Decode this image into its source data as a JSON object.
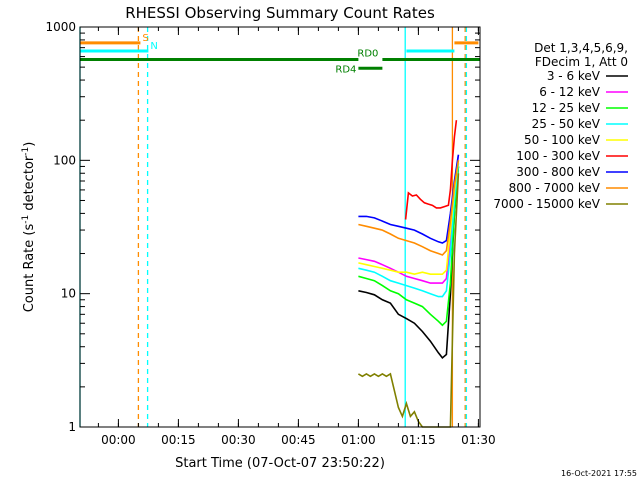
{
  "chart_data": {
    "type": "line",
    "title": "RHESSI Observing Summary Count Rates",
    "xlabel": "Start Time (07-Oct-07 23:50:22)",
    "ylabel": "Count Rate (s",
    "ylabel_sup1": "-1",
    "ylabel_mid": " detector",
    "ylabel_sup2": "-1",
    "ylabel_end": ")",
    "yscale": "log",
    "ylim": [
      1,
      1000
    ],
    "xlim_minutes": [
      -9.6,
      90.4
    ],
    "x_ticks": [
      {
        "label": "00:00",
        "min": 0
      },
      {
        "label": "00:15",
        "min": 15
      },
      {
        "label": "00:30",
        "min": 30
      },
      {
        "label": "00:45",
        "min": 45
      },
      {
        "label": "01:00",
        "min": 60
      },
      {
        "label": "01:15",
        "min": 75
      },
      {
        "label": "01:30",
        "min": 90
      }
    ],
    "y_ticks": [
      {
        "label": "1",
        "val": 1
      },
      {
        "label": "10",
        "val": 10
      },
      {
        "label": "100",
        "val": 100
      },
      {
        "label": "1000",
        "val": 1000
      }
    ],
    "legend_header": [
      "Det 1,3,4,5,6,9,",
      "FDecim 1, Att 0"
    ],
    "series": [
      {
        "name": "3 - 6 keV",
        "color": "#000000",
        "x": [
          60.0,
          62.0,
          64.0,
          66.0,
          68.0,
          70.0,
          72.0,
          74.0,
          76.0,
          78.0,
          80.0,
          81.0,
          82.0,
          83.0,
          84.0,
          85.0
        ],
        "y": [
          10.5,
          10.2,
          9.8,
          9.0,
          8.5,
          7.0,
          6.5,
          6.0,
          5.2,
          4.4,
          3.6,
          3.3,
          3.5,
          10.0,
          40.0,
          90.0
        ]
      },
      {
        "name": "6 - 12 keV",
        "color": "#ff00ff",
        "x": [
          60.0,
          62.0,
          64.0,
          66.0,
          68.0,
          70.0,
          72.0,
          74.0,
          76.0,
          78.0,
          80.0,
          81.0,
          82.0,
          83.0,
          84.0,
          85.0
        ],
        "y": [
          18.5,
          18.0,
          17.5,
          16.5,
          15.5,
          14.5,
          13.5,
          13.0,
          12.5,
          12.0,
          12.0,
          12.0,
          13.0,
          25.0,
          60.0,
          110.0
        ]
      },
      {
        "name": "12 - 25 keV",
        "color": "#00ff00",
        "x": [
          60.0,
          62.0,
          64.0,
          66.0,
          68.0,
          70.0,
          72.0,
          74.0,
          76.0,
          78.0,
          80.0,
          81.0,
          82.0,
          83.0,
          84.0,
          85.0
        ],
        "y": [
          13.5,
          13.0,
          12.5,
          11.5,
          10.5,
          10.0,
          9.0,
          8.5,
          8.0,
          7.0,
          6.2,
          5.8,
          6.2,
          12.0,
          40.0,
          90.0
        ]
      },
      {
        "name": "25 - 50 keV",
        "color": "#00ffff",
        "x": [
          60.0,
          62.0,
          64.0,
          66.0,
          68.0,
          70.0,
          72.0,
          74.0,
          76.0,
          78.0,
          80.0,
          81.0,
          82.0,
          83.0,
          84.0,
          85.0
        ],
        "y": [
          15.5,
          15.0,
          14.5,
          13.5,
          12.5,
          12.0,
          11.5,
          11.0,
          10.5,
          10.0,
          9.5,
          9.5,
          10.5,
          20.0,
          50.0,
          95.0
        ]
      },
      {
        "name": "50 - 100 keV",
        "color": "#ffff00",
        "x": [
          60.0,
          62.0,
          64.0,
          66.0,
          68.0,
          70.0,
          72.0,
          74.0,
          76.0,
          78.0,
          80.0,
          81.0,
          82.0,
          83.0,
          84.0,
          85.0
        ],
        "y": [
          17.0,
          16.5,
          16.0,
          15.5,
          15.0,
          14.5,
          14.5,
          14.0,
          14.5,
          14.0,
          14.0,
          14.0,
          15.0,
          30.0,
          60.0,
          100.0
        ]
      },
      {
        "name": "100 - 300 keV",
        "color": "#ff0000",
        "x": [
          71.8,
          72.5,
          73.5,
          74.5,
          75.5,
          76.5,
          77.5,
          78.5,
          79.5,
          80.5,
          81.5,
          82.5,
          83.0,
          83.5,
          84.0,
          84.5
        ],
        "y": [
          36.0,
          57.0,
          54.0,
          55.0,
          51.0,
          48.0,
          47.0,
          46.0,
          44.0,
          44.0,
          45.0,
          46.0,
          60.0,
          100.0,
          150.0,
          200.0
        ]
      },
      {
        "name": "300 - 800 keV",
        "color": "#0000ff",
        "x": [
          60.0,
          62.0,
          64.0,
          66.0,
          68.0,
          70.0,
          72.0,
          74.0,
          76.0,
          78.0,
          80.0,
          81.0,
          82.0,
          83.0,
          84.0,
          85.0
        ],
        "y": [
          38.0,
          38.0,
          37.0,
          35.0,
          33.0,
          32.0,
          31.0,
          30.0,
          28.0,
          26.0,
          24.5,
          24.0,
          25.0,
          40.0,
          70.0,
          110.0
        ]
      },
      {
        "name": "800 - 7000 keV",
        "color": "#ff8c00",
        "x": [
          60.0,
          62.0,
          64.0,
          66.0,
          68.0,
          70.0,
          72.0,
          74.0,
          76.0,
          78.0,
          80.0,
          81.0,
          82.0,
          83.0,
          84.0,
          85.0
        ],
        "y": [
          33.0,
          32.0,
          31.0,
          30.0,
          28.0,
          26.0,
          25.0,
          24.0,
          22.5,
          21.0,
          20.0,
          19.5,
          21.0,
          35.0,
          65.0,
          100.0
        ]
      },
      {
        "name": "7000 - 15000 keV",
        "color": "#808000",
        "x": [
          60.0,
          61.0,
          62.0,
          63.0,
          64.0,
          65.0,
          66.0,
          67.0,
          68.0,
          70.0,
          71.0,
          72.0,
          73.0,
          74.0,
          75.0,
          76.0,
          83.0,
          84.0,
          85.0
        ],
        "y": [
          2.5,
          2.4,
          2.5,
          2.4,
          2.5,
          2.4,
          2.5,
          2.4,
          2.5,
          1.4,
          1.2,
          1.5,
          1.2,
          1.3,
          1.1,
          1.0,
          1.0,
          20.0,
          80.0
        ]
      }
    ],
    "state_bars": [
      {
        "label": "S",
        "color": "#ff8c00",
        "y": 760,
        "segments": [
          [
            -9.6,
            5.5
          ],
          [
            84.0,
            90.0
          ]
        ]
      },
      {
        "label": "N",
        "color": "#00ffff",
        "y": 660,
        "segments": [
          [
            -9.6,
            7.5
          ],
          [
            72.0,
            84.0
          ]
        ]
      },
      {
        "label": "RD0",
        "color": "#008000",
        "y": 570,
        "segments": [
          [
            -9.6,
            60.0
          ],
          [
            66.0,
            90.4
          ]
        ]
      },
      {
        "label": "RD4",
        "color": "#008000",
        "y": 490,
        "segments": [
          [
            60.0,
            66.0
          ]
        ]
      }
    ],
    "vertical_lines": [
      {
        "min": -9.6,
        "color": "#00ffff",
        "dashed": false
      },
      {
        "min": 5.0,
        "color": "#ff8c00",
        "dashed": true
      },
      {
        "min": 7.3,
        "color": "#00ffff",
        "dashed": true
      },
      {
        "min": 71.7,
        "color": "#00ffff",
        "dashed": false
      },
      {
        "min": 83.5,
        "color": "#ff8c00",
        "dashed": false
      },
      {
        "min": 86.7,
        "color": "#ff8c00",
        "dashed": true
      },
      {
        "min": 87.0,
        "color": "#00ffff",
        "dashed": true
      }
    ]
  },
  "footer_timestamp": "16-Oct-2021 17:55"
}
